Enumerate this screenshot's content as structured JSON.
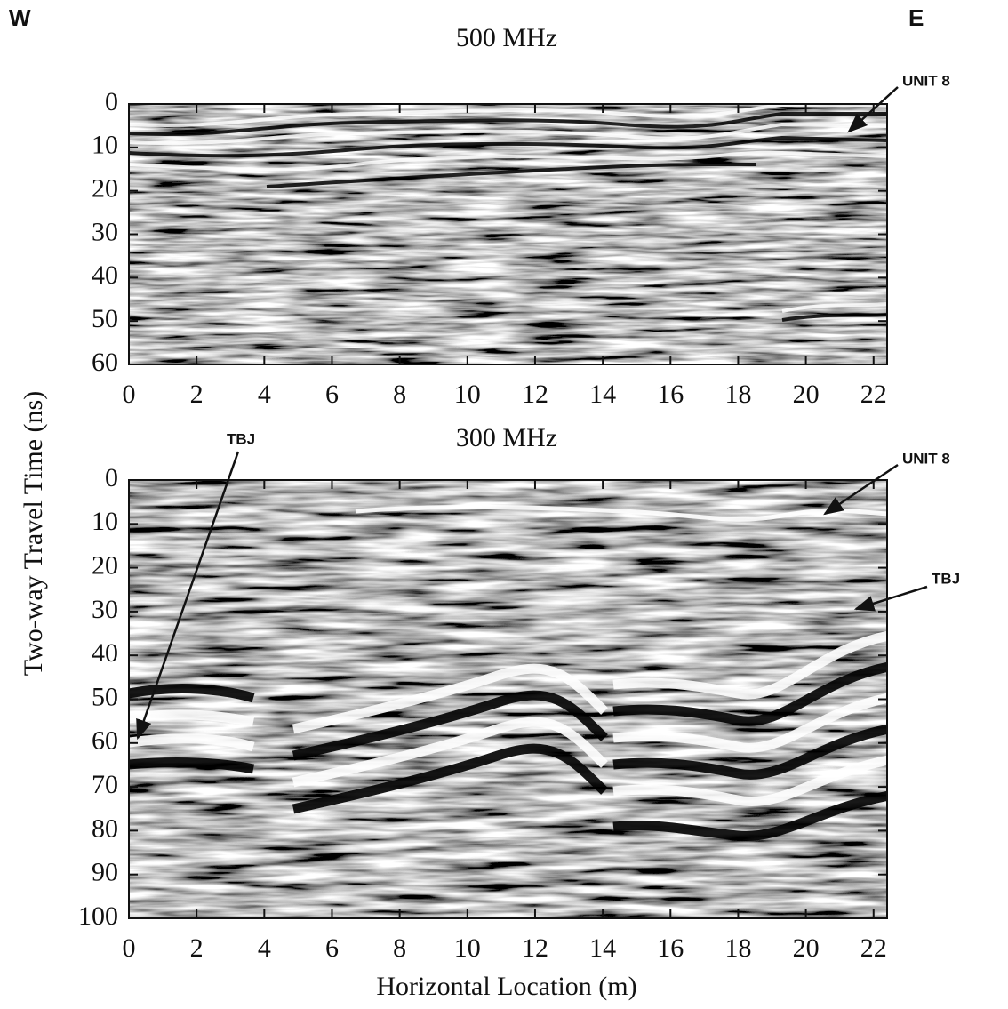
{
  "labels": {
    "west": "W",
    "east": "E",
    "y_label": "Two-way Travel Time (ns)",
    "x_label": "Horizontal Location (m)"
  },
  "chart_data": [
    {
      "type": "radargram",
      "title": "500 MHz",
      "xlim": [
        0,
        22.4
      ],
      "xticks": [
        0,
        2,
        4,
        6,
        8,
        10,
        12,
        14,
        16,
        18,
        20,
        22
      ],
      "ylim": [
        0,
        60
      ],
      "yticks": [
        0,
        10,
        20,
        30,
        40,
        50,
        60
      ],
      "annotations": [
        "UNIT 8"
      ]
    },
    {
      "type": "radargram",
      "title": "300 MHz",
      "xlim": [
        0,
        22.4
      ],
      "xticks": [
        0,
        2,
        4,
        6,
        8,
        10,
        12,
        14,
        16,
        18,
        20,
        22
      ],
      "ylim": [
        0,
        100
      ],
      "yticks": [
        0,
        10,
        20,
        30,
        40,
        50,
        60,
        70,
        80,
        90,
        100
      ],
      "annotations": [
        "TBJ",
        "UNIT 8",
        "TBJ"
      ]
    }
  ]
}
